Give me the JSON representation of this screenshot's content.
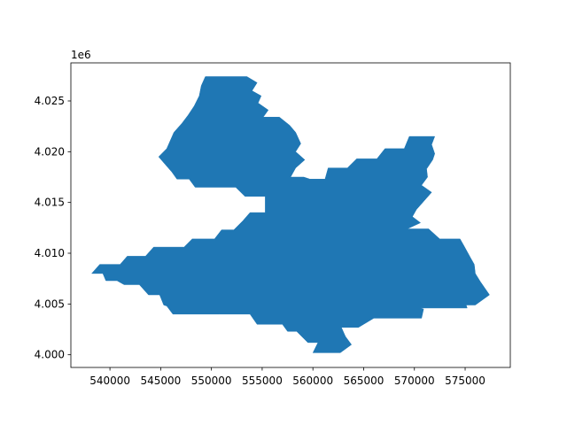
{
  "chart_data": {
    "type": "area",
    "title": "",
    "xlabel": "",
    "ylabel": "",
    "y_offset_label": "1e6",
    "xlim": [
      536150,
      579450
    ],
    "ylim": [
      3998750,
      4028750
    ],
    "xticks": [
      540000,
      545000,
      550000,
      555000,
      560000,
      565000,
      570000,
      575000
    ],
    "xtick_labels": [
      "540000",
      "545000",
      "550000",
      "555000",
      "560000",
      "565000",
      "570000",
      "575000"
    ],
    "yticks": [
      4000000,
      4005000,
      4010000,
      4015000,
      4020000,
      4025000
    ],
    "ytick_labels": [
      "4.000",
      "4.005",
      "4.010",
      "4.015",
      "4.020",
      "4.025"
    ],
    "fill_color": "#1f77b4",
    "grid": false,
    "polygon": [
      [
        538200,
        4008000
      ],
      [
        539000,
        4008900
      ],
      [
        541000,
        4008900
      ],
      [
        541700,
        4009700
      ],
      [
        543500,
        4009700
      ],
      [
        544300,
        4010600
      ],
      [
        547300,
        4010600
      ],
      [
        548100,
        4011400
      ],
      [
        550300,
        4011400
      ],
      [
        551000,
        4012300
      ],
      [
        552200,
        4012300
      ],
      [
        553100,
        4013200
      ],
      [
        553800,
        4014000
      ],
      [
        555300,
        4014000
      ],
      [
        555300,
        4015600
      ],
      [
        553300,
        4015600
      ],
      [
        552400,
        4016500
      ],
      [
        548400,
        4016500
      ],
      [
        547800,
        4017300
      ],
      [
        546600,
        4017300
      ],
      [
        546100,
        4018000
      ],
      [
        545400,
        4018800
      ],
      [
        544800,
        4019500
      ],
      [
        545600,
        4020300
      ],
      [
        546300,
        4021900
      ],
      [
        547100,
        4022800
      ],
      [
        547700,
        4023600
      ],
      [
        548300,
        4024500
      ],
      [
        548800,
        4025500
      ],
      [
        549000,
        4026500
      ],
      [
        549400,
        4027400
      ],
      [
        553500,
        4027400
      ],
      [
        554500,
        4026800
      ],
      [
        554000,
        4026000
      ],
      [
        554900,
        4025500
      ],
      [
        554600,
        4024800
      ],
      [
        555600,
        4024100
      ],
      [
        555100,
        4023400
      ],
      [
        556700,
        4023400
      ],
      [
        557700,
        4022600
      ],
      [
        558300,
        4021900
      ],
      [
        558800,
        4020800
      ],
      [
        558300,
        4020000
      ],
      [
        559200,
        4019200
      ],
      [
        558300,
        4018400
      ],
      [
        557800,
        4017500
      ],
      [
        559100,
        4017500
      ],
      [
        559700,
        4017300
      ],
      [
        561200,
        4017300
      ],
      [
        561500,
        4018400
      ],
      [
        563400,
        4018400
      ],
      [
        564300,
        4019300
      ],
      [
        566300,
        4019300
      ],
      [
        567100,
        4020300
      ],
      [
        569000,
        4020300
      ],
      [
        569500,
        4021500
      ],
      [
        572000,
        4021500
      ],
      [
        571700,
        4020700
      ],
      [
        572000,
        4019800
      ],
      [
        571800,
        4019200
      ],
      [
        571200,
        4018300
      ],
      [
        571300,
        4017500
      ],
      [
        570700,
        4016700
      ],
      [
        571700,
        4016000
      ],
      [
        570200,
        4014300
      ],
      [
        569800,
        4013600
      ],
      [
        570600,
        4013000
      ],
      [
        569300,
        4012400
      ],
      [
        571400,
        4012400
      ],
      [
        572500,
        4011400
      ],
      [
        574500,
        4011400
      ],
      [
        574900,
        4010700
      ],
      [
        575500,
        4009600
      ],
      [
        575900,
        4008900
      ],
      [
        576000,
        4008000
      ],
      [
        576500,
        4007200
      ],
      [
        577400,
        4005900
      ],
      [
        576000,
        4004900
      ],
      [
        575100,
        4004900
      ],
      [
        575200,
        4004600
      ],
      [
        570600,
        4004600
      ],
      [
        570900,
        4004500
      ],
      [
        570700,
        4003600
      ],
      [
        566000,
        4003600
      ],
      [
        564500,
        4002700
      ],
      [
        562800,
        4002700
      ],
      [
        563200,
        4001800
      ],
      [
        563800,
        4001000
      ],
      [
        562700,
        4000200
      ],
      [
        560000,
        4000200
      ],
      [
        560500,
        4001200
      ],
      [
        559500,
        4001200
      ],
      [
        558400,
        4002300
      ],
      [
        557500,
        4002300
      ],
      [
        557000,
        4003000
      ],
      [
        554500,
        4003000
      ],
      [
        553800,
        4004000
      ],
      [
        550800,
        4004000
      ],
      [
        549200,
        4004000
      ],
      [
        548500,
        4004000
      ],
      [
        546200,
        4004000
      ],
      [
        545600,
        4004800
      ],
      [
        545300,
        4004900
      ],
      [
        544900,
        4005900
      ],
      [
        543800,
        4005900
      ],
      [
        542900,
        4006900
      ],
      [
        541400,
        4006900
      ],
      [
        540700,
        4007300
      ],
      [
        539600,
        4007300
      ],
      [
        539300,
        4008000
      ]
    ]
  }
}
